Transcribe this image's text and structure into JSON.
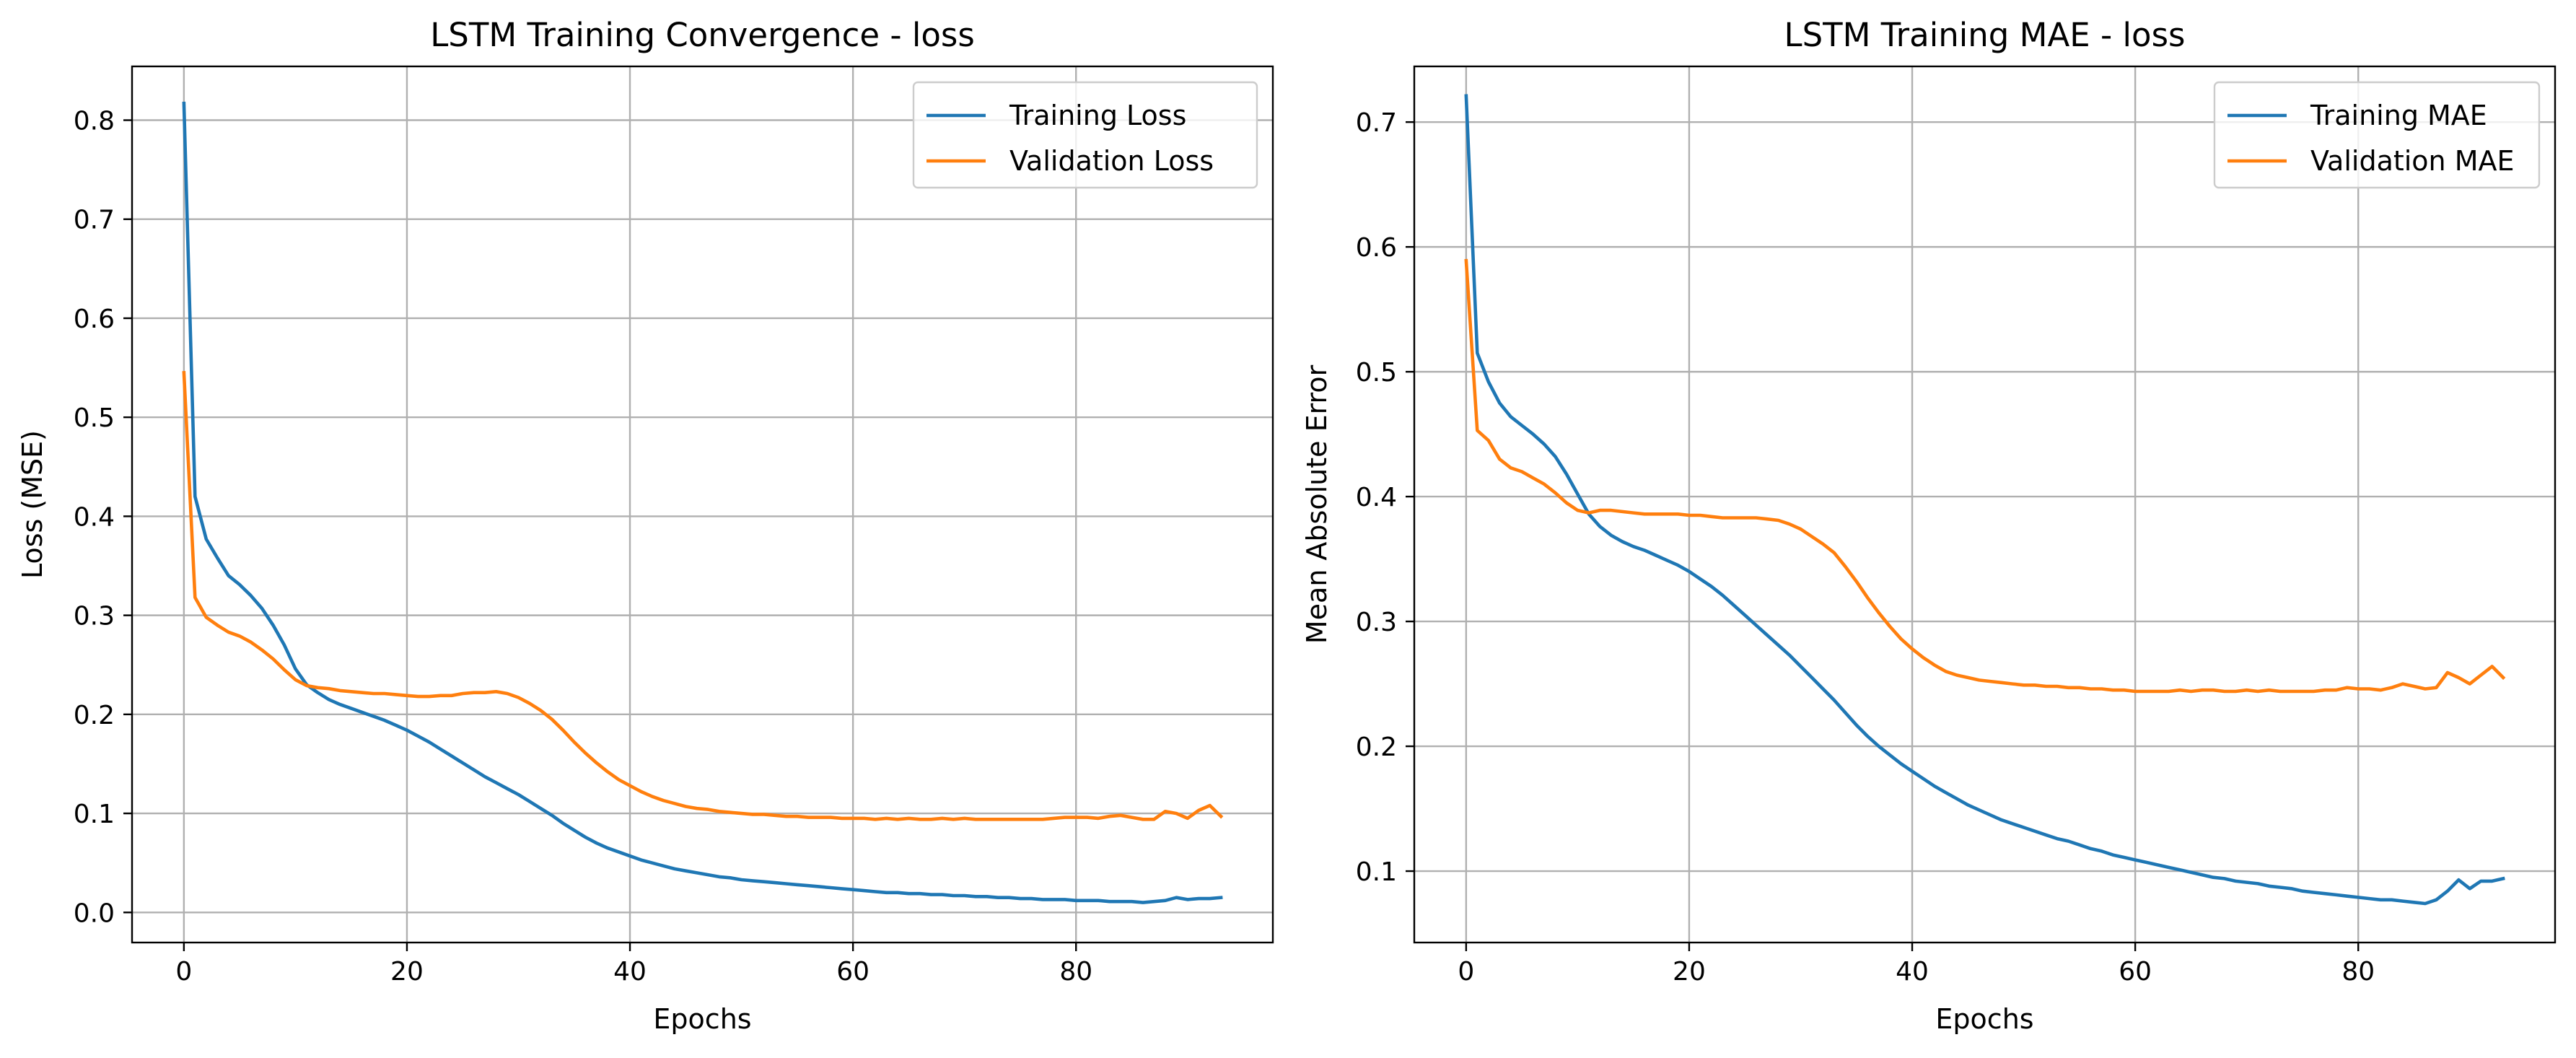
{
  "chart_data": [
    {
      "type": "line",
      "title": "LSTM Training Convergence - loss",
      "xlabel": "Epochs",
      "ylabel": "Loss (MSE)",
      "xlim": [
        -4.65,
        97.65
      ],
      "ylim": [
        -0.0304,
        0.8543
      ],
      "xticks": [
        0,
        20,
        40,
        60,
        80
      ],
      "yticks": [
        0.0,
        0.1,
        0.2,
        0.3,
        0.4,
        0.5,
        0.6,
        0.7,
        0.8
      ],
      "ytick_labels": [
        "0.0",
        "0.1",
        "0.2",
        "0.3",
        "0.4",
        "0.5",
        "0.6",
        "0.7",
        "0.8"
      ],
      "grid": true,
      "legend": "top-right",
      "series": [
        {
          "name": "Training Loss",
          "color": "#1f77b4",
          "x": [
            0,
            1,
            2,
            3,
            4,
            5,
            6,
            7,
            8,
            9,
            10,
            11,
            12,
            13,
            14,
            15,
            16,
            17,
            18,
            19,
            20,
            21,
            22,
            23,
            24,
            25,
            26,
            27,
            28,
            29,
            30,
            31,
            32,
            33,
            34,
            35,
            36,
            37,
            38,
            39,
            40,
            41,
            42,
            43,
            44,
            45,
            46,
            47,
            48,
            49,
            50,
            51,
            52,
            53,
            54,
            55,
            56,
            57,
            58,
            59,
            60,
            61,
            62,
            63,
            64,
            65,
            66,
            67,
            68,
            69,
            70,
            71,
            72,
            73,
            74,
            75,
            76,
            77,
            78,
            79,
            80,
            81,
            82,
            83,
            84,
            85,
            86,
            87,
            88,
            89,
            90,
            91,
            92,
            93
          ],
          "y": [
            0.817,
            0.42,
            0.377,
            0.358,
            0.34,
            0.331,
            0.32,
            0.307,
            0.29,
            0.27,
            0.246,
            0.23,
            0.222,
            0.215,
            0.21,
            0.206,
            0.202,
            0.198,
            0.194,
            0.189,
            0.184,
            0.178,
            0.172,
            0.165,
            0.158,
            0.151,
            0.144,
            0.137,
            0.131,
            0.125,
            0.119,
            0.112,
            0.105,
            0.098,
            0.09,
            0.083,
            0.076,
            0.07,
            0.065,
            0.061,
            0.057,
            0.053,
            0.05,
            0.047,
            0.044,
            0.042,
            0.04,
            0.038,
            0.036,
            0.035,
            0.033,
            0.032,
            0.031,
            0.03,
            0.029,
            0.028,
            0.027,
            0.026,
            0.025,
            0.024,
            0.023,
            0.022,
            0.021,
            0.02,
            0.02,
            0.019,
            0.019,
            0.018,
            0.018,
            0.017,
            0.017,
            0.016,
            0.016,
            0.015,
            0.015,
            0.014,
            0.014,
            0.013,
            0.013,
            0.013,
            0.012,
            0.012,
            0.012,
            0.011,
            0.011,
            0.011,
            0.01,
            0.011,
            0.012,
            0.015,
            0.013,
            0.014,
            0.014,
            0.015
          ]
        },
        {
          "name": "Validation Loss",
          "color": "#ff7f0e",
          "x": [
            0,
            1,
            2,
            3,
            4,
            5,
            6,
            7,
            8,
            9,
            10,
            11,
            12,
            13,
            14,
            15,
            16,
            17,
            18,
            19,
            20,
            21,
            22,
            23,
            24,
            25,
            26,
            27,
            28,
            29,
            30,
            31,
            32,
            33,
            34,
            35,
            36,
            37,
            38,
            39,
            40,
            41,
            42,
            43,
            44,
            45,
            46,
            47,
            48,
            49,
            50,
            51,
            52,
            53,
            54,
            55,
            56,
            57,
            58,
            59,
            60,
            61,
            62,
            63,
            64,
            65,
            66,
            67,
            68,
            69,
            70,
            71,
            72,
            73,
            74,
            75,
            76,
            77,
            78,
            79,
            80,
            81,
            82,
            83,
            84,
            85,
            86,
            87,
            88,
            89,
            90,
            91,
            92,
            93
          ],
          "y": [
            0.545,
            0.318,
            0.298,
            0.29,
            0.283,
            0.279,
            0.273,
            0.265,
            0.256,
            0.245,
            0.235,
            0.229,
            0.227,
            0.226,
            0.224,
            0.223,
            0.222,
            0.221,
            0.221,
            0.22,
            0.219,
            0.218,
            0.218,
            0.219,
            0.219,
            0.221,
            0.222,
            0.222,
            0.223,
            0.221,
            0.217,
            0.211,
            0.204,
            0.195,
            0.184,
            0.172,
            0.161,
            0.151,
            0.142,
            0.134,
            0.128,
            0.122,
            0.117,
            0.113,
            0.11,
            0.107,
            0.105,
            0.104,
            0.102,
            0.101,
            0.1,
            0.099,
            0.099,
            0.098,
            0.097,
            0.097,
            0.096,
            0.096,
            0.096,
            0.095,
            0.095,
            0.095,
            0.094,
            0.095,
            0.094,
            0.095,
            0.094,
            0.094,
            0.095,
            0.094,
            0.095,
            0.094,
            0.094,
            0.094,
            0.094,
            0.094,
            0.094,
            0.094,
            0.095,
            0.096,
            0.096,
            0.096,
            0.095,
            0.097,
            0.098,
            0.096,
            0.094,
            0.094,
            0.102,
            0.1,
            0.095,
            0.103,
            0.108,
            0.097
          ]
        }
      ]
    },
    {
      "type": "line",
      "title": "LSTM Training MAE - loss",
      "xlabel": "Epochs",
      "ylabel": "Mean Absolute Error",
      "xlim": [
        -4.65,
        97.65
      ],
      "ylim": [
        0.0428,
        0.7446
      ],
      "xticks": [
        0,
        20,
        40,
        60,
        80
      ],
      "yticks": [
        0.1,
        0.2,
        0.3,
        0.4,
        0.5,
        0.6,
        0.7
      ],
      "ytick_labels": [
        "0.1",
        "0.2",
        "0.3",
        "0.4",
        "0.5",
        "0.6",
        "0.7"
      ],
      "grid": true,
      "legend": "top-right",
      "series": [
        {
          "name": "Training MAE",
          "color": "#1f77b4",
          "x": [
            0,
            1,
            2,
            3,
            4,
            5,
            6,
            7,
            8,
            9,
            10,
            11,
            12,
            13,
            14,
            15,
            16,
            17,
            18,
            19,
            20,
            21,
            22,
            23,
            24,
            25,
            26,
            27,
            28,
            29,
            30,
            31,
            32,
            33,
            34,
            35,
            36,
            37,
            38,
            39,
            40,
            41,
            42,
            43,
            44,
            45,
            46,
            47,
            48,
            49,
            50,
            51,
            52,
            53,
            54,
            55,
            56,
            57,
            58,
            59,
            60,
            61,
            62,
            63,
            64,
            65,
            66,
            67,
            68,
            69,
            70,
            71,
            72,
            73,
            74,
            75,
            76,
            77,
            78,
            79,
            80,
            81,
            82,
            83,
            84,
            85,
            86,
            87,
            88,
            89,
            90,
            91,
            92,
            93
          ],
          "y": [
            0.721,
            0.515,
            0.492,
            0.475,
            0.464,
            0.457,
            0.45,
            0.442,
            0.432,
            0.418,
            0.402,
            0.386,
            0.376,
            0.369,
            0.364,
            0.36,
            0.357,
            0.353,
            0.349,
            0.345,
            0.34,
            0.334,
            0.328,
            0.321,
            0.313,
            0.305,
            0.297,
            0.289,
            0.281,
            0.273,
            0.264,
            0.255,
            0.246,
            0.237,
            0.227,
            0.217,
            0.208,
            0.2,
            0.193,
            0.186,
            0.18,
            0.174,
            0.168,
            0.163,
            0.158,
            0.153,
            0.149,
            0.145,
            0.141,
            0.138,
            0.135,
            0.132,
            0.129,
            0.126,
            0.124,
            0.121,
            0.118,
            0.116,
            0.113,
            0.111,
            0.109,
            0.107,
            0.105,
            0.103,
            0.101,
            0.099,
            0.097,
            0.095,
            0.094,
            0.092,
            0.091,
            0.09,
            0.088,
            0.087,
            0.086,
            0.084,
            0.083,
            0.082,
            0.081,
            0.08,
            0.079,
            0.078,
            0.077,
            0.077,
            0.076,
            0.075,
            0.074,
            0.077,
            0.084,
            0.093,
            0.086,
            0.092,
            0.092,
            0.094
          ]
        },
        {
          "name": "Validation MAE",
          "color": "#ff7f0e",
          "x": [
            0,
            1,
            2,
            3,
            4,
            5,
            6,
            7,
            8,
            9,
            10,
            11,
            12,
            13,
            14,
            15,
            16,
            17,
            18,
            19,
            20,
            21,
            22,
            23,
            24,
            25,
            26,
            27,
            28,
            29,
            30,
            31,
            32,
            33,
            34,
            35,
            36,
            37,
            38,
            39,
            40,
            41,
            42,
            43,
            44,
            45,
            46,
            47,
            48,
            49,
            50,
            51,
            52,
            53,
            54,
            55,
            56,
            57,
            58,
            59,
            60,
            61,
            62,
            63,
            64,
            65,
            66,
            67,
            68,
            69,
            70,
            71,
            72,
            73,
            74,
            75,
            76,
            77,
            78,
            79,
            80,
            81,
            82,
            83,
            84,
            85,
            86,
            87,
            88,
            89,
            90,
            91,
            92,
            93
          ],
          "y": [
            0.589,
            0.453,
            0.445,
            0.43,
            0.423,
            0.42,
            0.415,
            0.41,
            0.403,
            0.395,
            0.389,
            0.387,
            0.389,
            0.389,
            0.388,
            0.387,
            0.386,
            0.386,
            0.386,
            0.386,
            0.385,
            0.385,
            0.384,
            0.383,
            0.383,
            0.383,
            0.383,
            0.382,
            0.381,
            0.378,
            0.374,
            0.368,
            0.362,
            0.355,
            0.344,
            0.332,
            0.319,
            0.307,
            0.296,
            0.286,
            0.278,
            0.271,
            0.265,
            0.26,
            0.257,
            0.255,
            0.253,
            0.252,
            0.251,
            0.25,
            0.249,
            0.249,
            0.248,
            0.248,
            0.247,
            0.247,
            0.246,
            0.246,
            0.245,
            0.245,
            0.244,
            0.244,
            0.244,
            0.244,
            0.245,
            0.244,
            0.245,
            0.245,
            0.244,
            0.244,
            0.245,
            0.244,
            0.245,
            0.244,
            0.244,
            0.244,
            0.244,
            0.245,
            0.245,
            0.247,
            0.246,
            0.246,
            0.245,
            0.247,
            0.25,
            0.248,
            0.246,
            0.247,
            0.259,
            0.255,
            0.25,
            0.257,
            0.264,
            0.255
          ]
        }
      ]
    }
  ]
}
